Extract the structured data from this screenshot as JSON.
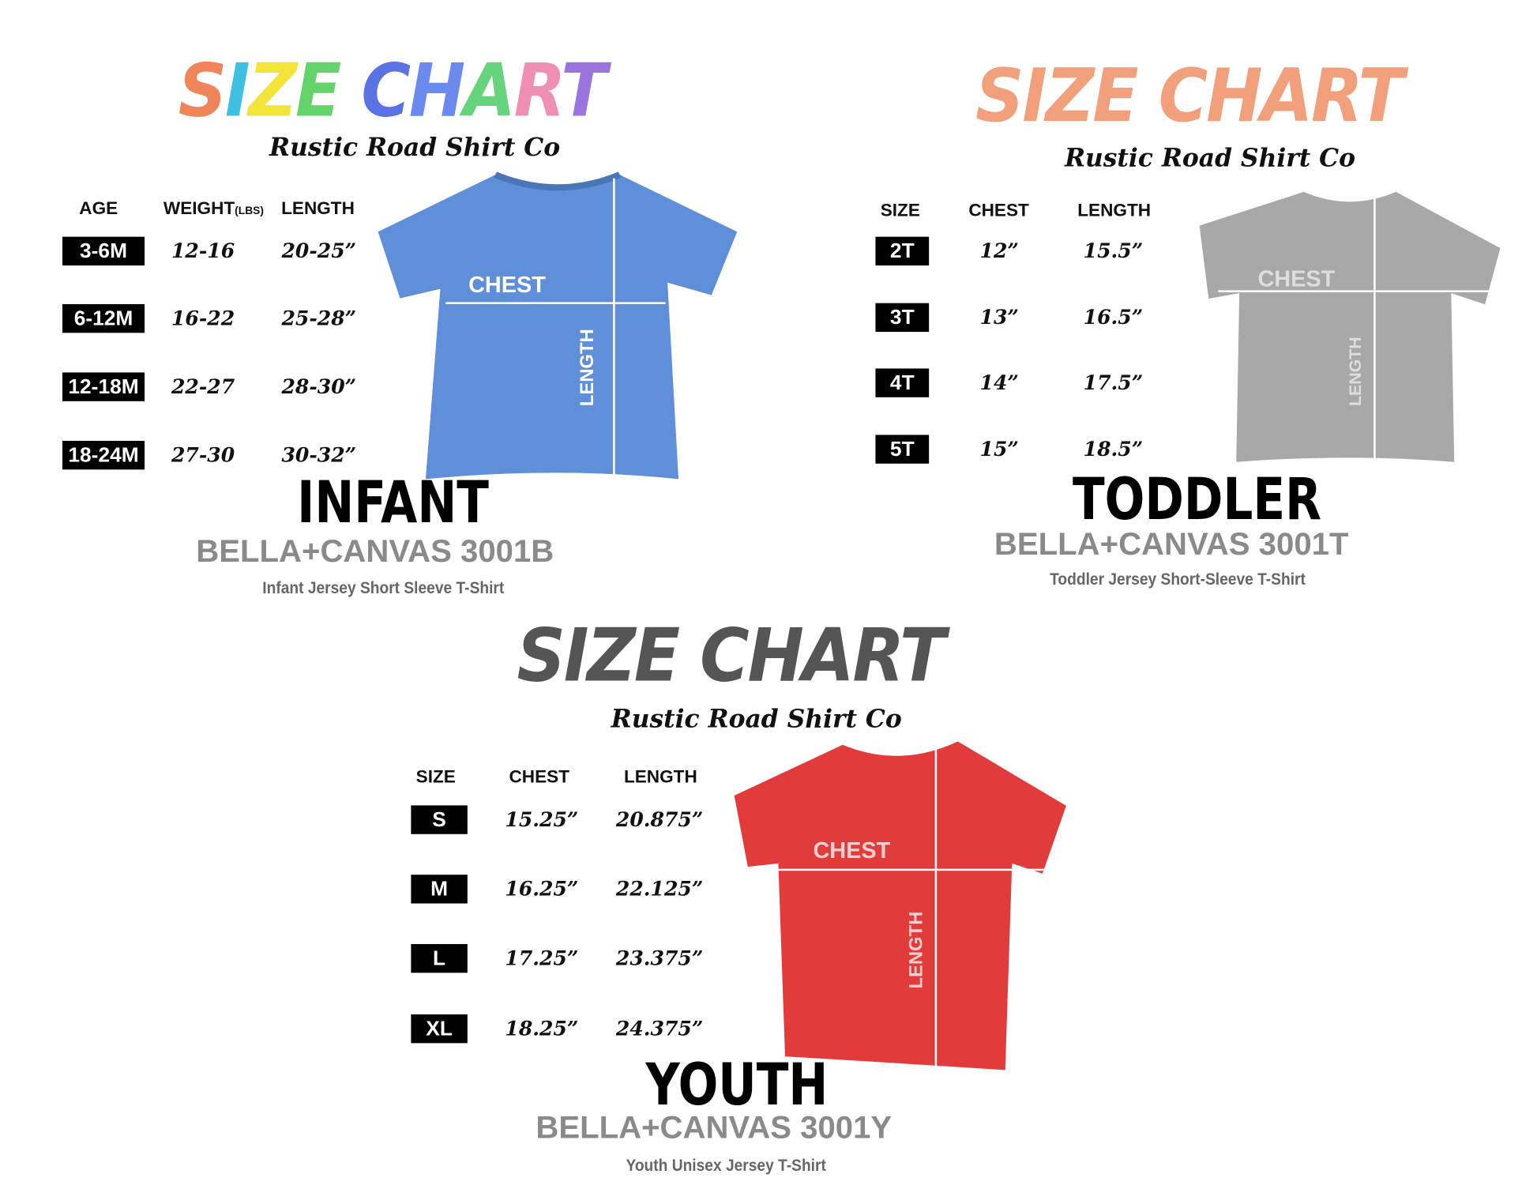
{
  "colors": {
    "infant_shirt": "#5f8fd8",
    "toddler_shirt": "#a8a8a8",
    "youth_shirt": "#e23b3b",
    "toddler_title": "#f2a07b",
    "youth_title": "#555555"
  },
  "infant": {
    "title": "SIZE CHART",
    "title_colors": [
      "#f0855a",
      "#3ec0e0",
      "#f3e43a",
      "#63d36a",
      " ",
      "#5a72e3",
      "#6a8af0",
      "#66d47c",
      "#ef8fb4",
      "#9b74e0"
    ],
    "brand": "Rustic Road Shirt Co",
    "headers": {
      "age": "AGE",
      "weight": "WEIGHT",
      "weight_unit": "(LBS)",
      "length": "LENGTH"
    },
    "rows": [
      {
        "age": "3-6M",
        "weight": "12-16",
        "length": "20-25”"
      },
      {
        "age": "6-12M",
        "weight": "16-22",
        "length": "25-28”"
      },
      {
        "age": "12-18M",
        "weight": "22-27",
        "length": "28-30”"
      },
      {
        "age": "18-24M",
        "weight": "27-30",
        "length": "30-32”"
      }
    ],
    "chest_label": "CHEST",
    "length_label": "LENGTH",
    "category": "INFANT",
    "model": "BELLA+CANVAS 3001B",
    "description": "Infant Jersey Short Sleeve T-Shirt"
  },
  "toddler": {
    "title": "SIZE CHART",
    "brand": "Rustic Road Shirt Co",
    "headers": {
      "size": "SIZE",
      "chest": "CHEST",
      "length": "LENGTH"
    },
    "rows": [
      {
        "size": "2T",
        "chest": "12”",
        "length": "15.5”"
      },
      {
        "size": "3T",
        "chest": "13”",
        "length": "16.5”"
      },
      {
        "size": "4T",
        "chest": "14”",
        "length": "17.5”"
      },
      {
        "size": "5T",
        "chest": "15”",
        "length": "18.5”"
      }
    ],
    "chest_label": "CHEST",
    "length_label": "LENGTH",
    "category": "TODDLER",
    "model": "BELLA+CANVAS 3001T",
    "description": "Toddler Jersey Short-Sleeve T-Shirt"
  },
  "youth": {
    "title": "SIZE CHART",
    "brand": "Rustic Road Shirt Co",
    "headers": {
      "size": "SIZE",
      "chest": "CHEST",
      "length": "LENGTH"
    },
    "rows": [
      {
        "size": "S",
        "chest": "15.25”",
        "length": "20.875”"
      },
      {
        "size": "M",
        "chest": "16.25”",
        "length": "22.125”"
      },
      {
        "size": "L",
        "chest": "17.25”",
        "length": "23.375”"
      },
      {
        "size": "XL",
        "chest": "18.25”",
        "length": "24.375”"
      }
    ],
    "chest_label": "CHEST",
    "length_label": "LENGTH",
    "category": "YOUTH",
    "model": "BELLA+CANVAS 3001Y",
    "description": "Youth Unisex Jersey T-Shirt"
  }
}
